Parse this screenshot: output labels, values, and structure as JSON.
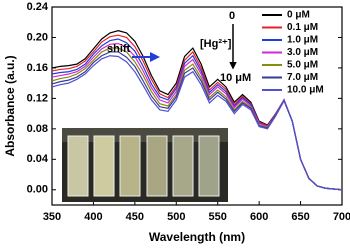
{
  "chart_data": {
    "type": "line",
    "x_label": "Wavelength (nm)",
    "y_label": "Absorbance (a.u.)",
    "annotations": [
      "shift",
      "[Hg²⁺]",
      "0",
      "10 μM"
    ],
    "x": [
      350,
      360,
      370,
      380,
      390,
      400,
      410,
      420,
      430,
      440,
      450,
      460,
      470,
      480,
      490,
      500,
      510,
      520,
      530,
      540,
      550,
      560,
      570,
      580,
      590,
      600,
      610,
      620,
      630,
      640,
      650,
      660,
      670,
      680,
      690,
      700
    ],
    "xlim": [
      350,
      700
    ],
    "xticks": [
      350,
      400,
      450,
      500,
      550,
      600,
      650,
      700
    ],
    "ylim": [
      -0.02,
      0.24
    ],
    "yticks": [
      {
        "value": 0,
        "label": "0.00"
      },
      {
        "value": 0.04,
        "label": "0.04"
      },
      {
        "value": 0.08,
        "label": "0.08"
      },
      {
        "value": 0.12,
        "label": "0.12"
      },
      {
        "value": 0.16,
        "label": "0.16"
      },
      {
        "value": 0.2,
        "label": "0.20"
      },
      {
        "value": 0.24,
        "label": "0.24"
      }
    ],
    "grid": false,
    "legend": "upper right",
    "series": [
      {
        "name": "0 μM",
        "color": "#000000",
        "values": [
          0.16,
          0.162,
          0.163,
          0.165,
          0.172,
          0.185,
          0.198,
          0.206,
          0.209,
          0.206,
          0.195,
          0.175,
          0.15,
          0.13,
          0.125,
          0.14,
          0.175,
          0.186,
          0.165,
          0.135,
          0.145,
          0.135,
          0.115,
          0.125,
          0.115,
          0.09,
          0.085,
          0.1,
          0.118,
          0.09,
          0.04,
          0.015,
          0.005,
          0.002,
          0.001,
          0.0
        ]
      },
      {
        "name": "0.1 μM",
        "color": "#e8202a",
        "values": [
          0.156,
          0.158,
          0.159,
          0.162,
          0.169,
          0.181,
          0.194,
          0.201,
          0.203,
          0.2,
          0.188,
          0.169,
          0.145,
          0.126,
          0.121,
          0.136,
          0.17,
          0.181,
          0.16,
          0.131,
          0.141,
          0.132,
          0.112,
          0.123,
          0.113,
          0.089,
          0.084,
          0.099,
          0.118,
          0.09,
          0.04,
          0.015,
          0.005,
          0.002,
          0.001,
          0.0
        ]
      },
      {
        "name": "1.0 μM",
        "color": "#1f3fd8",
        "values": [
          0.152,
          0.154,
          0.155,
          0.158,
          0.165,
          0.178,
          0.189,
          0.196,
          0.198,
          0.193,
          0.182,
          0.162,
          0.139,
          0.122,
          0.118,
          0.133,
          0.166,
          0.176,
          0.156,
          0.128,
          0.138,
          0.129,
          0.11,
          0.121,
          0.112,
          0.088,
          0.083,
          0.099,
          0.118,
          0.09,
          0.04,
          0.015,
          0.005,
          0.002,
          0.001,
          0.0
        ]
      },
      {
        "name": "3.0 μM",
        "color": "#d02ad0",
        "values": [
          0.148,
          0.15,
          0.152,
          0.155,
          0.162,
          0.174,
          0.185,
          0.191,
          0.192,
          0.187,
          0.175,
          0.156,
          0.134,
          0.118,
          0.114,
          0.129,
          0.162,
          0.171,
          0.152,
          0.125,
          0.135,
          0.126,
          0.108,
          0.119,
          0.11,
          0.087,
          0.083,
          0.099,
          0.118,
          0.09,
          0.04,
          0.015,
          0.005,
          0.002,
          0.001,
          0.0
        ]
      },
      {
        "name": "5.0 μM",
        "color": "#8a8a10",
        "values": [
          0.143,
          0.146,
          0.148,
          0.152,
          0.159,
          0.17,
          0.181,
          0.186,
          0.186,
          0.181,
          0.168,
          0.15,
          0.129,
          0.113,
          0.11,
          0.125,
          0.157,
          0.165,
          0.147,
          0.121,
          0.131,
          0.122,
          0.105,
          0.116,
          0.108,
          0.085,
          0.082,
          0.098,
          0.117,
          0.09,
          0.04,
          0.015,
          0.005,
          0.002,
          0.001,
          0.0
        ]
      },
      {
        "name": "7.0 μM",
        "color": "#3a3a9a",
        "values": [
          0.139,
          0.142,
          0.144,
          0.148,
          0.155,
          0.167,
          0.176,
          0.181,
          0.181,
          0.174,
          0.162,
          0.143,
          0.123,
          0.109,
          0.107,
          0.122,
          0.153,
          0.16,
          0.143,
          0.118,
          0.128,
          0.119,
          0.103,
          0.114,
          0.107,
          0.084,
          0.081,
          0.098,
          0.117,
          0.09,
          0.04,
          0.015,
          0.005,
          0.002,
          0.001,
          0.0
        ]
      },
      {
        "name": "10.0 μM",
        "color": "#5050d0",
        "values": [
          0.135,
          0.138,
          0.14,
          0.145,
          0.152,
          0.163,
          0.172,
          0.176,
          0.175,
          0.168,
          0.155,
          0.137,
          0.118,
          0.105,
          0.103,
          0.118,
          0.148,
          0.155,
          0.138,
          0.114,
          0.124,
          0.116,
          0.1,
          0.112,
          0.105,
          0.083,
          0.08,
          0.097,
          0.117,
          0.09,
          0.04,
          0.015,
          0.005,
          0.002,
          0.001,
          0.0
        ]
      }
    ]
  }
}
